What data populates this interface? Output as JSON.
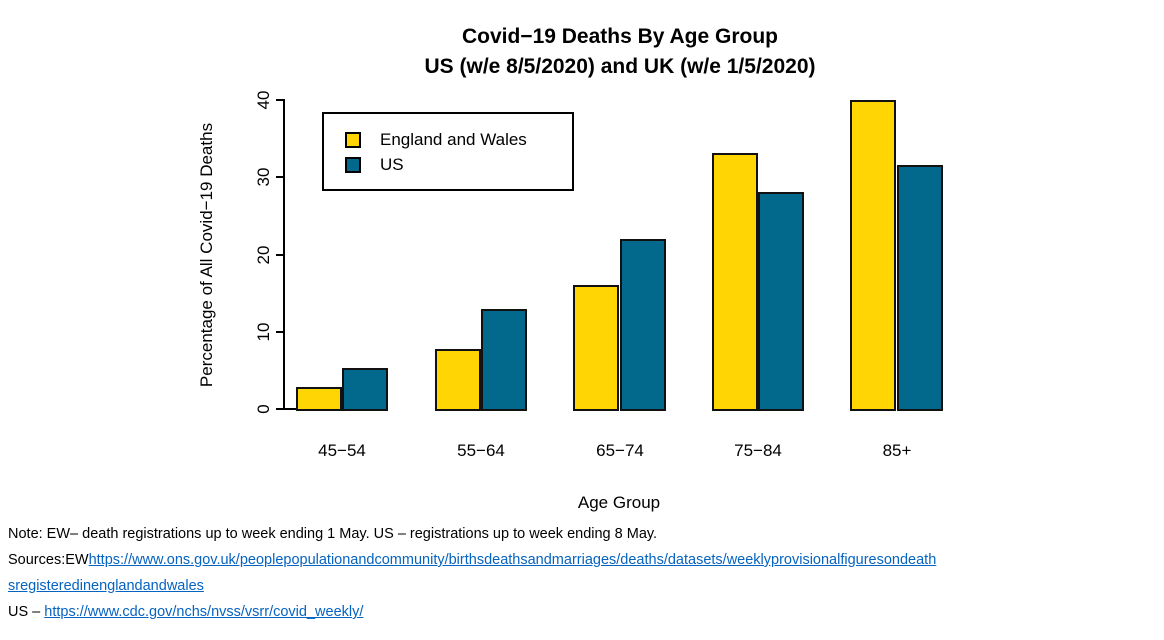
{
  "title": {
    "line1": "Covid−19 Deaths By Age Group",
    "line2": "US (w/e 8/5/2020) and UK (w/e 1/5/2020)"
  },
  "chart_data": {
    "type": "bar",
    "categories": [
      "45−54",
      "55−64",
      "65−74",
      "75−84",
      "85+"
    ],
    "series": [
      {
        "name": "England and Wales",
        "color": "#FFD504",
        "values": [
          2.9,
          7.8,
          16.0,
          33.2,
          40.0
        ]
      },
      {
        "name": "US",
        "color": "#02688C",
        "values": [
          5.3,
          12.9,
          22.0,
          28.1,
          31.6
        ]
      }
    ],
    "xlabel": "Age Group",
    "ylabel": "Percentage of All Covid−19 Deaths",
    "ylim": [
      0,
      40
    ],
    "yticks": [
      0,
      10,
      20,
      30,
      40
    ],
    "grid": false,
    "legend_position": "top-left",
    "bar_border_color": "#111111"
  },
  "notes": {
    "line1": "Note: EW– death registrations up to week ending 1 May. US – registrations up to week ending 8 May.",
    "sources_prefix": "Sources:EW",
    "ons_link_line1": "https://www.ons.gov.uk/peoplepopulationandcommunity/birthsdeathsandmarriages/deaths/datasets/weeklyprovisionalfiguresondeath",
    "ons_link_line2": "sregisteredinenglandandwales",
    "us_prefix": "US – ",
    "cdc_link": "https://www.cdc.gov/nchs/nvss/vsrr/covid_weekly/"
  }
}
